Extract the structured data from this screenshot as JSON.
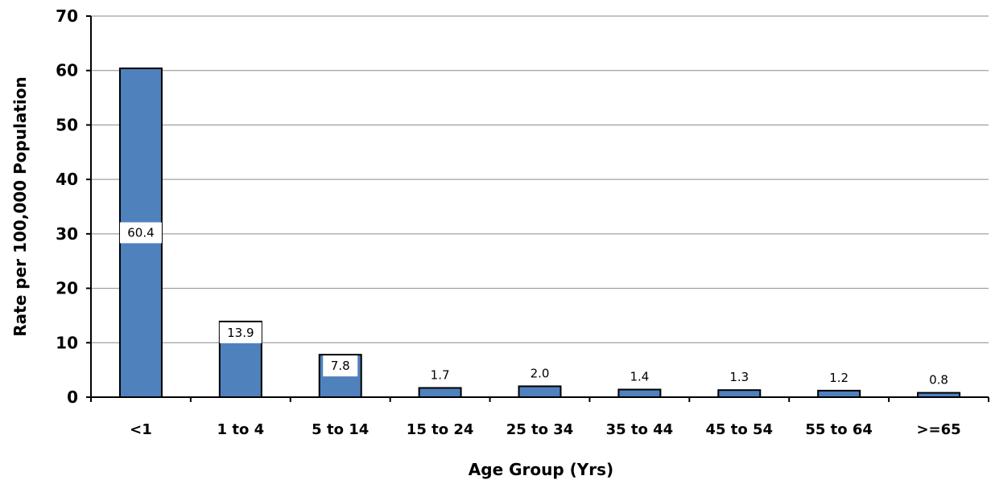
{
  "chart_data": {
    "type": "bar",
    "title": "",
    "xlabel": "Age Group (Yrs)",
    "ylabel": "Rate per 100,000 Population",
    "ylim": [
      0,
      70
    ],
    "yticks": [
      0,
      10,
      20,
      30,
      40,
      50,
      60,
      70
    ],
    "grid": true,
    "categories": [
      "<1",
      "1 to 4",
      "5 to 14",
      "15 to 24",
      "25 to 34",
      "35 to 44",
      "45 to 54",
      "55 to 64",
      ">=65"
    ],
    "values": [
      60.4,
      13.9,
      7.8,
      1.7,
      2.0,
      1.4,
      1.3,
      1.2,
      0.8
    ],
    "data_labels": [
      "60.4",
      "13.9",
      "7.8",
      "1.7",
      "2.0",
      "1.4",
      "1.3",
      "1.2",
      "0.8"
    ],
    "bar_color": "#4F81BD",
    "bar_outline": "#000000"
  }
}
